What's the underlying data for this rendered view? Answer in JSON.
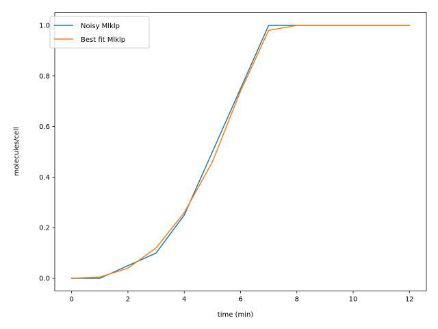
{
  "chart_data": {
    "type": "line",
    "xlabel": "time (min)",
    "ylabel": "molecules/cell",
    "xlim": [
      -0.6,
      12.6
    ],
    "ylim": [
      -0.05,
      1.05
    ],
    "xticks": [
      0,
      2,
      4,
      6,
      8,
      10,
      12
    ],
    "yticks": [
      0.0,
      0.2,
      0.4,
      0.6,
      0.8,
      1.0
    ],
    "xtick_labels": [
      "0",
      "2",
      "4",
      "6",
      "8",
      "10",
      "12"
    ],
    "ytick_labels": [
      "0.0",
      "0.2",
      "0.4",
      "0.6",
      "0.8",
      "1.0"
    ],
    "grid": false,
    "legend_position": "top-left",
    "x": [
      0,
      1,
      2,
      3,
      4,
      5,
      6,
      7,
      8,
      9,
      10,
      11,
      12
    ],
    "series": [
      {
        "name": "Noisy Mlklp",
        "color": "#1f77b4",
        "values": [
          0.0,
          0.0,
          0.05,
          0.1,
          0.25,
          0.5,
          0.75,
          1.0,
          1.0,
          1.0,
          1.0,
          1.0,
          1.0
        ]
      },
      {
        "name": "Best fit Mlklp",
        "color": "#ff7f0e",
        "values": [
          0.0,
          0.005,
          0.04,
          0.12,
          0.26,
          0.46,
          0.74,
          0.98,
          1.0,
          1.0,
          1.0,
          1.0,
          1.0
        ]
      }
    ]
  }
}
